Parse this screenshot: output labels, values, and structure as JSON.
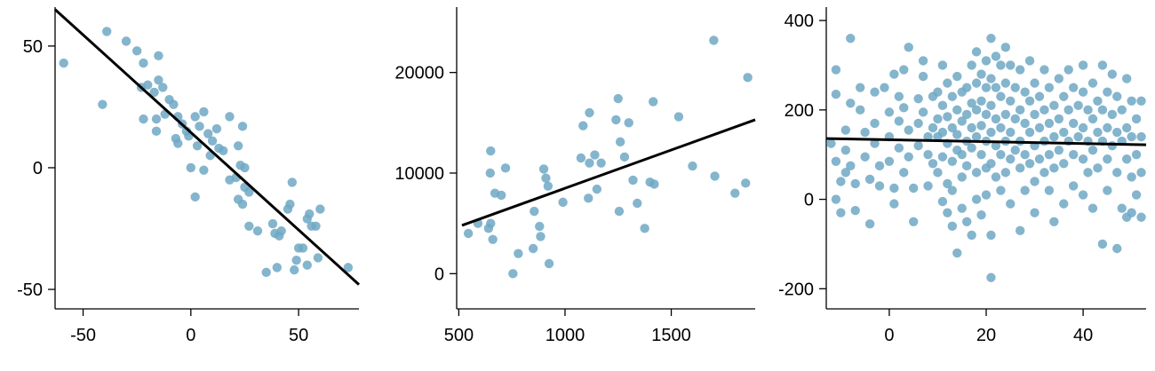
{
  "chart_data": [
    {
      "type": "scatter",
      "title": "",
      "xlabel": "",
      "ylabel": "",
      "xlim": [
        -63,
        78
      ],
      "ylim": [
        -58,
        66
      ],
      "xticks": [
        -50,
        0,
        50
      ],
      "yticks": [
        -50,
        0,
        50
      ],
      "grid": false,
      "point_color": "#6fa8c4",
      "line_color": "#000000",
      "fit_line": [
        [
          -63,
          65
        ],
        [
          78,
          -48
        ]
      ],
      "points": [
        [
          -59,
          43
        ],
        [
          -41,
          26
        ],
        [
          -39,
          56
        ],
        [
          -30,
          52
        ],
        [
          -25,
          48
        ],
        [
          -22,
          43
        ],
        [
          -23,
          33
        ],
        [
          -20,
          34
        ],
        [
          -17,
          31
        ],
        [
          -15,
          46
        ],
        [
          -15,
          36
        ],
        [
          -13,
          33
        ],
        [
          -12,
          22
        ],
        [
          -16,
          20
        ],
        [
          -22,
          20
        ],
        [
          -16,
          15
        ],
        [
          -10,
          28
        ],
        [
          -8,
          26
        ],
        [
          -6,
          21
        ],
        [
          -4,
          18
        ],
        [
          -2,
          15
        ],
        [
          -6,
          10
        ],
        [
          -7,
          12
        ],
        [
          -1,
          13
        ],
        [
          2,
          21
        ],
        [
          6,
          23
        ],
        [
          4,
          17
        ],
        [
          3,
          9
        ],
        [
          8,
          14
        ],
        [
          10,
          11
        ],
        [
          12,
          16
        ],
        [
          13,
          8
        ],
        [
          0,
          0
        ],
        [
          2,
          -12
        ],
        [
          6,
          -1
        ],
        [
          9,
          5
        ],
        [
          15,
          7
        ],
        [
          18,
          21
        ],
        [
          18,
          -5
        ],
        [
          21,
          -4
        ],
        [
          22,
          9
        ],
        [
          24,
          17
        ],
        [
          23,
          1
        ],
        [
          25,
          0
        ],
        [
          25,
          -8
        ],
        [
          22,
          -13
        ],
        [
          24,
          -15
        ],
        [
          27,
          -10
        ],
        [
          27,
          -24
        ],
        [
          31,
          -26
        ],
        [
          35,
          -43
        ],
        [
          38,
          -23
        ],
        [
          39,
          -27
        ],
        [
          41,
          -28
        ],
        [
          42,
          -26
        ],
        [
          40,
          -41
        ],
        [
          45,
          -17
        ],
        [
          46,
          -15
        ],
        [
          47,
          -6
        ],
        [
          48,
          -42
        ],
        [
          49,
          -38
        ],
        [
          50,
          -33
        ],
        [
          52,
          -33
        ],
        [
          54,
          -21
        ],
        [
          55,
          -19
        ],
        [
          54,
          -40
        ],
        [
          56,
          -24
        ],
        [
          58,
          -24
        ],
        [
          59,
          -37
        ],
        [
          60,
          -17
        ],
        [
          73,
          -41
        ]
      ]
    },
    {
      "type": "scatter",
      "title": "",
      "xlabel": "",
      "ylabel": "",
      "xlim": [
        490,
        1895
      ],
      "ylim": [
        -3500,
        26500
      ],
      "xticks": [
        500,
        1000,
        1500
      ],
      "yticks": [
        0,
        10000,
        20000
      ],
      "grid": false,
      "point_color": "#6fa8c4",
      "line_color": "#000000",
      "fit_line": [
        [
          515,
          4800
        ],
        [
          1895,
          15300
        ]
      ],
      "points": [
        [
          545,
          4000
        ],
        [
          590,
          5000
        ],
        [
          640,
          4500
        ],
        [
          648,
          10000
        ],
        [
          650,
          12200
        ],
        [
          650,
          5000
        ],
        [
          660,
          3400
        ],
        [
          670,
          8000
        ],
        [
          700,
          7800
        ],
        [
          720,
          10500
        ],
        [
          755,
          0
        ],
        [
          780,
          2000
        ],
        [
          850,
          2500
        ],
        [
          855,
          6200
        ],
        [
          880,
          4700
        ],
        [
          885,
          3700
        ],
        [
          900,
          10400
        ],
        [
          910,
          9500
        ],
        [
          920,
          8700
        ],
        [
          925,
          1000
        ],
        [
          990,
          7100
        ],
        [
          1075,
          11500
        ],
        [
          1085,
          14700
        ],
        [
          1110,
          7500
        ],
        [
          1115,
          11000
        ],
        [
          1115,
          16000
        ],
        [
          1140,
          11800
        ],
        [
          1150,
          8400
        ],
        [
          1170,
          11000
        ],
        [
          1240,
          15300
        ],
        [
          1250,
          17400
        ],
        [
          1255,
          6200
        ],
        [
          1260,
          13100
        ],
        [
          1280,
          11600
        ],
        [
          1300,
          15000
        ],
        [
          1320,
          9300
        ],
        [
          1340,
          7000
        ],
        [
          1375,
          4500
        ],
        [
          1400,
          9100
        ],
        [
          1415,
          17100
        ],
        [
          1420,
          8900
        ],
        [
          1535,
          15600
        ],
        [
          1600,
          10700
        ],
        [
          1700,
          23200
        ],
        [
          1705,
          9700
        ],
        [
          1800,
          8000
        ],
        [
          1850,
          9000
        ],
        [
          1860,
          19500
        ]
      ]
    },
    {
      "type": "scatter",
      "title": "",
      "xlabel": "",
      "ylabel": "",
      "xlim": [
        -13,
        53
      ],
      "ylim": [
        -245,
        430
      ],
      "xticks": [
        0,
        20,
        40
      ],
      "yticks": [
        -200,
        0,
        200,
        400
      ],
      "grid": false,
      "point_color": "#6fa8c4",
      "line_color": "#000000",
      "fit_line": [
        [
          -13,
          136
        ],
        [
          53,
          122
        ]
      ],
      "points": [
        [
          -11,
          290
        ],
        [
          -11,
          235
        ],
        [
          -12,
          125
        ],
        [
          -11,
          85
        ],
        [
          -10,
          40
        ],
        [
          -11,
          0
        ],
        [
          -10,
          -30
        ],
        [
          -8,
          360
        ],
        [
          -8,
          215
        ],
        [
          -9,
          155
        ],
        [
          -9,
          110
        ],
        [
          -8,
          75
        ],
        [
          -9,
          60
        ],
        [
          -7,
          35
        ],
        [
          -7,
          -25
        ],
        [
          -6,
          250
        ],
        [
          -6,
          200
        ],
        [
          -5,
          150
        ],
        [
          -5,
          95
        ],
        [
          -4,
          45
        ],
        [
          -4,
          -55
        ],
        [
          -3,
          240
        ],
        [
          -3,
          170
        ],
        [
          -3,
          125
        ],
        [
          -2,
          75
        ],
        [
          -2,
          30
        ],
        [
          -1,
          250
        ],
        [
          0,
          195
        ],
        [
          0,
          140
        ],
        [
          0,
          85
        ],
        [
          1,
          25
        ],
        [
          1,
          -10
        ],
        [
          1,
          280
        ],
        [
          2,
          230
        ],
        [
          2,
          175
        ],
        [
          2,
          115
        ],
        [
          3,
          60
        ],
        [
          3,
          290
        ],
        [
          3,
          205
        ],
        [
          4,
          340
        ],
        [
          4,
          155
        ],
        [
          4,
          95
        ],
        [
          5,
          25
        ],
        [
          5,
          -50
        ],
        [
          6,
          225
        ],
        [
          6,
          170
        ],
        [
          6,
          120
        ],
        [
          7,
          310
        ],
        [
          7,
          275
        ],
        [
          7,
          195
        ],
        [
          8,
          140
        ],
        [
          8,
          100
        ],
        [
          8,
          30
        ],
        [
          9,
          230
        ],
        [
          9,
          160
        ],
        [
          9,
          80
        ],
        [
          10,
          240
        ],
        [
          10,
          180
        ],
        [
          10,
          140
        ],
        [
          10,
          60
        ],
        [
          11,
          300
        ],
        [
          11,
          210
        ],
        [
          11,
          150
        ],
        [
          11,
          95
        ],
        [
          11,
          -5
        ],
        [
          12,
          260
        ],
        [
          12,
          185
        ],
        [
          12,
          125
        ],
        [
          12,
          35
        ],
        [
          12,
          -30
        ],
        [
          13,
          230
        ],
        [
          13,
          160
        ],
        [
          13,
          85
        ],
        [
          13,
          20
        ],
        [
          13,
          -60
        ],
        [
          14,
          275
        ],
        [
          14,
          200
        ],
        [
          14,
          145
        ],
        [
          14,
          110
        ],
        [
          14,
          -120
        ],
        [
          15,
          240
        ],
        [
          15,
          175
        ],
        [
          15,
          100
        ],
        [
          15,
          50
        ],
        [
          15,
          -20
        ],
        [
          16,
          250
        ],
        [
          16,
          190
        ],
        [
          16,
          130
        ],
        [
          16,
          75
        ],
        [
          16,
          -50
        ],
        [
          17,
          300
        ],
        [
          17,
          215
        ],
        [
          17,
          160
        ],
        [
          17,
          115
        ],
        [
          17,
          -80
        ],
        [
          18,
          330
        ],
        [
          18,
          260
        ],
        [
          18,
          200
        ],
        [
          18,
          140
        ],
        [
          18,
          60
        ],
        [
          18,
          0
        ],
        [
          19,
          280
        ],
        [
          19,
          220
        ],
        [
          19,
          165
        ],
        [
          19,
          100
        ],
        [
          19,
          -35
        ],
        [
          20,
          310
        ],
        [
          20,
          250
        ],
        [
          20,
          190
        ],
        [
          20,
          130
        ],
        [
          20,
          70
        ],
        [
          20,
          10
        ],
        [
          21,
          360
        ],
        [
          21,
          270
        ],
        [
          21,
          210
        ],
        [
          21,
          150
        ],
        [
          21,
          80
        ],
        [
          21,
          -80
        ],
        [
          21,
          -175
        ],
        [
          22,
          320
        ],
        [
          22,
          250
        ],
        [
          22,
          180
        ],
        [
          22,
          120
        ],
        [
          22,
          50
        ],
        [
          23,
          300
        ],
        [
          23,
          230
        ],
        [
          23,
          160
        ],
        [
          23,
          100
        ],
        [
          23,
          20
        ],
        [
          24,
          340
        ],
        [
          24,
          260
        ],
        [
          24,
          190
        ],
        [
          24,
          130
        ],
        [
          24,
          60
        ],
        [
          25,
          300
        ],
        [
          25,
          220
        ],
        [
          25,
          150
        ],
        [
          25,
          90
        ],
        [
          25,
          -10
        ],
        [
          26,
          250
        ],
        [
          26,
          180
        ],
        [
          26,
          110
        ],
        [
          27,
          290
        ],
        [
          27,
          200
        ],
        [
          27,
          130
        ],
        [
          27,
          70
        ],
        [
          27,
          -70
        ],
        [
          28,
          240
        ],
        [
          28,
          170
        ],
        [
          28,
          100
        ],
        [
          28,
          20
        ],
        [
          29,
          310
        ],
        [
          29,
          220
        ],
        [
          29,
          150
        ],
        [
          29,
          80
        ],
        [
          30,
          260
        ],
        [
          30,
          190
        ],
        [
          30,
          120
        ],
        [
          30,
          40
        ],
        [
          30,
          -30
        ],
        [
          31,
          230
        ],
        [
          31,
          160
        ],
        [
          31,
          90
        ],
        [
          32,
          290
        ],
        [
          32,
          200
        ],
        [
          32,
          130
        ],
        [
          32,
          60
        ],
        [
          33,
          250
        ],
        [
          33,
          170
        ],
        [
          33,
          100
        ],
        [
          33,
          20
        ],
        [
          34,
          210
        ],
        [
          34,
          140
        ],
        [
          34,
          70
        ],
        [
          34,
          -50
        ],
        [
          35,
          270
        ],
        [
          35,
          180
        ],
        [
          35,
          110
        ],
        [
          36,
          230
        ],
        [
          36,
          150
        ],
        [
          36,
          80
        ],
        [
          36,
          -10
        ],
        [
          37,
          290
        ],
        [
          37,
          200
        ],
        [
          37,
          130
        ],
        [
          38,
          250
        ],
        [
          38,
          170
        ],
        [
          38,
          100
        ],
        [
          38,
          30
        ],
        [
          39,
          210
        ],
        [
          39,
          140
        ],
        [
          40,
          300
        ],
        [
          40,
          240
        ],
        [
          40,
          160
        ],
        [
          40,
          90
        ],
        [
          40,
          10
        ],
        [
          41,
          200
        ],
        [
          41,
          130
        ],
        [
          41,
          60
        ],
        [
          42,
          260
        ],
        [
          42,
          180
        ],
        [
          42,
          110
        ],
        [
          42,
          -20
        ],
        [
          43,
          220
        ],
        [
          43,
          150
        ],
        [
          43,
          70
        ],
        [
          44,
          300
        ],
        [
          44,
          200
        ],
        [
          44,
          130
        ],
        [
          44,
          -100
        ],
        [
          45,
          240
        ],
        [
          45,
          160
        ],
        [
          45,
          90
        ],
        [
          45,
          20
        ],
        [
          46,
          280
        ],
        [
          46,
          190
        ],
        [
          46,
          120
        ],
        [
          47,
          230
        ],
        [
          47,
          150
        ],
        [
          47,
          60
        ],
        [
          47,
          -110
        ],
        [
          48,
          200
        ],
        [
          48,
          130
        ],
        [
          48,
          -20
        ],
        [
          49,
          270
        ],
        [
          49,
          160
        ],
        [
          49,
          90
        ],
        [
          49,
          -40
        ],
        [
          50,
          220
        ],
        [
          50,
          140
        ],
        [
          50,
          50
        ],
        [
          50,
          -30
        ],
        [
          51,
          180
        ],
        [
          51,
          100
        ],
        [
          51,
          10
        ],
        [
          52,
          220
        ],
        [
          52,
          140
        ],
        [
          52,
          60
        ],
        [
          52,
          -40
        ]
      ]
    }
  ]
}
